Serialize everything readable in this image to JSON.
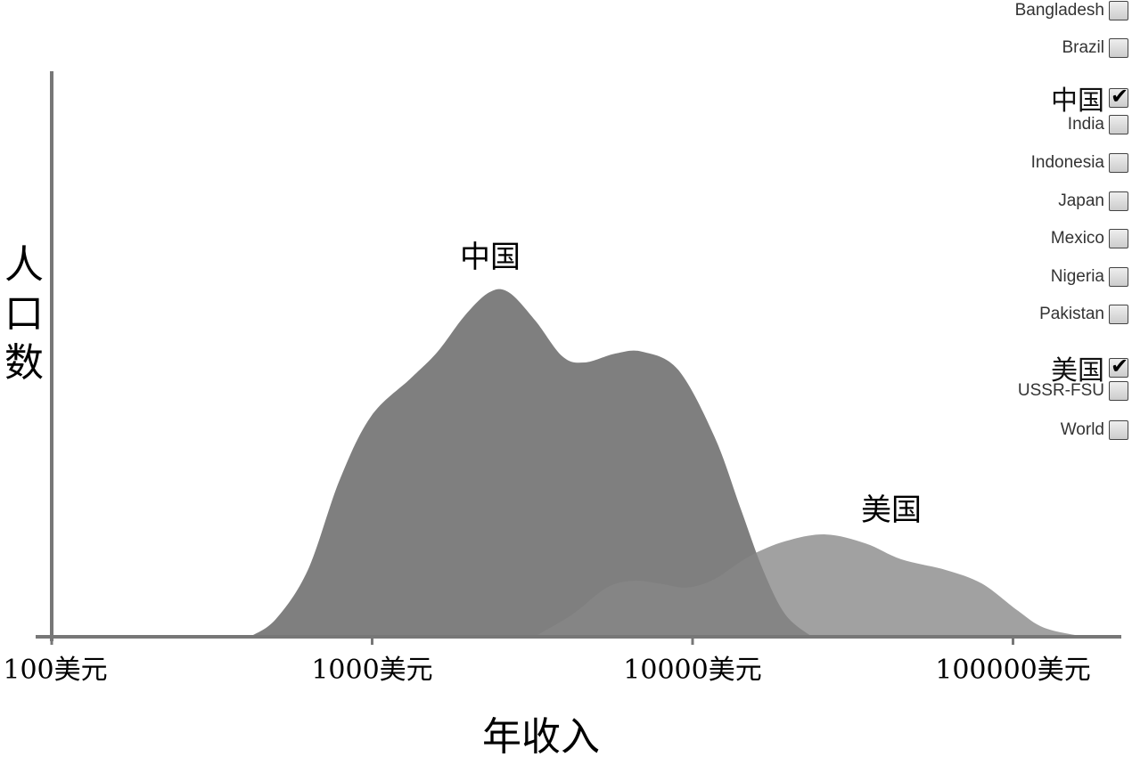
{
  "chart_data": {
    "type": "area",
    "xscale": "log",
    "xlim": [
      100,
      180000
    ],
    "ylim": [
      0,
      100
    ],
    "xlabel": "年收入",
    "ylabel": "人口数",
    "xticks": [
      {
        "value": 100,
        "label": "100美元"
      },
      {
        "value": 1000,
        "label": "1000美元"
      },
      {
        "value": 10000,
        "label": "10000美元"
      },
      {
        "value": 100000,
        "label": "100000美元"
      }
    ],
    "series": [
      {
        "name": "美国",
        "color": "#878787",
        "x": [
          3200,
          4200,
          5400,
          6550,
          7900,
          9600,
          11700,
          15000,
          19500,
          26000,
          34700,
          44800,
          61800,
          80000,
          103000,
          125000,
          167000
        ],
        "y": [
          0,
          3.9,
          8.7,
          9.9,
          9.4,
          8.7,
          10.2,
          14.2,
          16.9,
          18.1,
          16.5,
          13.7,
          11.8,
          9.4,
          4.7,
          1.6,
          0
        ]
      },
      {
        "name": "中国",
        "color": "#7f7f7f",
        "x": [
          415,
          500,
          630,
          790,
          990,
          1320,
          1600,
          1940,
          2320,
          2670,
          3230,
          3920,
          4600,
          5760,
          6980,
          9020,
          11700,
          14100,
          16600,
          19500,
          23600
        ],
        "y": [
          0,
          3.1,
          11.8,
          27.6,
          38.9,
          45.7,
          50.4,
          56.7,
          60.9,
          60.9,
          55.9,
          49.6,
          48.5,
          50.1,
          50.4,
          47.2,
          35.4,
          22.8,
          11.8,
          3.9,
          0
        ]
      }
    ]
  },
  "legend": {
    "items": [
      {
        "label": "Bangladesh",
        "checked": false
      },
      {
        "label": "Brazil",
        "checked": false
      },
      {
        "label": "中国",
        "checked": true
      },
      {
        "label": "India",
        "checked": false
      },
      {
        "label": "Indonesia",
        "checked": false
      },
      {
        "label": "Japan",
        "checked": false
      },
      {
        "label": "Mexico",
        "checked": false
      },
      {
        "label": "Nigeria",
        "checked": false
      },
      {
        "label": "Pakistan",
        "checked": false
      },
      {
        "label": "美国",
        "checked": true
      },
      {
        "label": "USSR-FSU",
        "checked": false
      },
      {
        "label": "World",
        "checked": false
      }
    ]
  },
  "colors": {
    "axis": "#777777",
    "china": "#7f7f7f",
    "usa": "#a1a1a1"
  }
}
